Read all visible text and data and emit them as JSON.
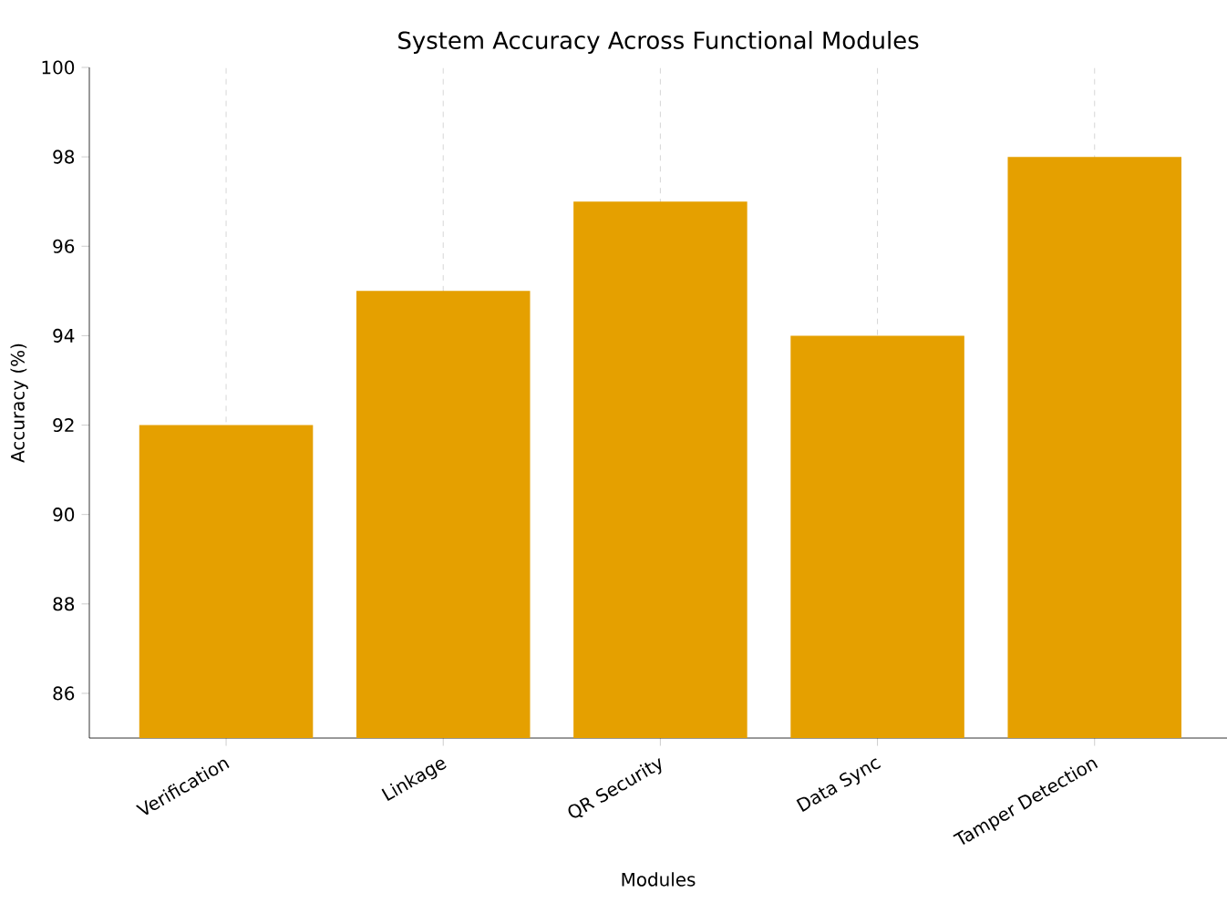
{
  "chart_data": {
    "type": "bar",
    "title": "System Accuracy Across Functional Modules",
    "xlabel": "Modules",
    "ylabel": "Accuracy (%)",
    "categories": [
      "Verification",
      "Linkage",
      "QR Security",
      "Data Sync",
      "Tamper Detection"
    ],
    "values": [
      92,
      95,
      97,
      94,
      98
    ],
    "color": "#e5a000",
    "ylim": [
      85,
      100
    ],
    "yticks": [
      86,
      88,
      90,
      92,
      94,
      96,
      98,
      100
    ],
    "grid": "x"
  }
}
